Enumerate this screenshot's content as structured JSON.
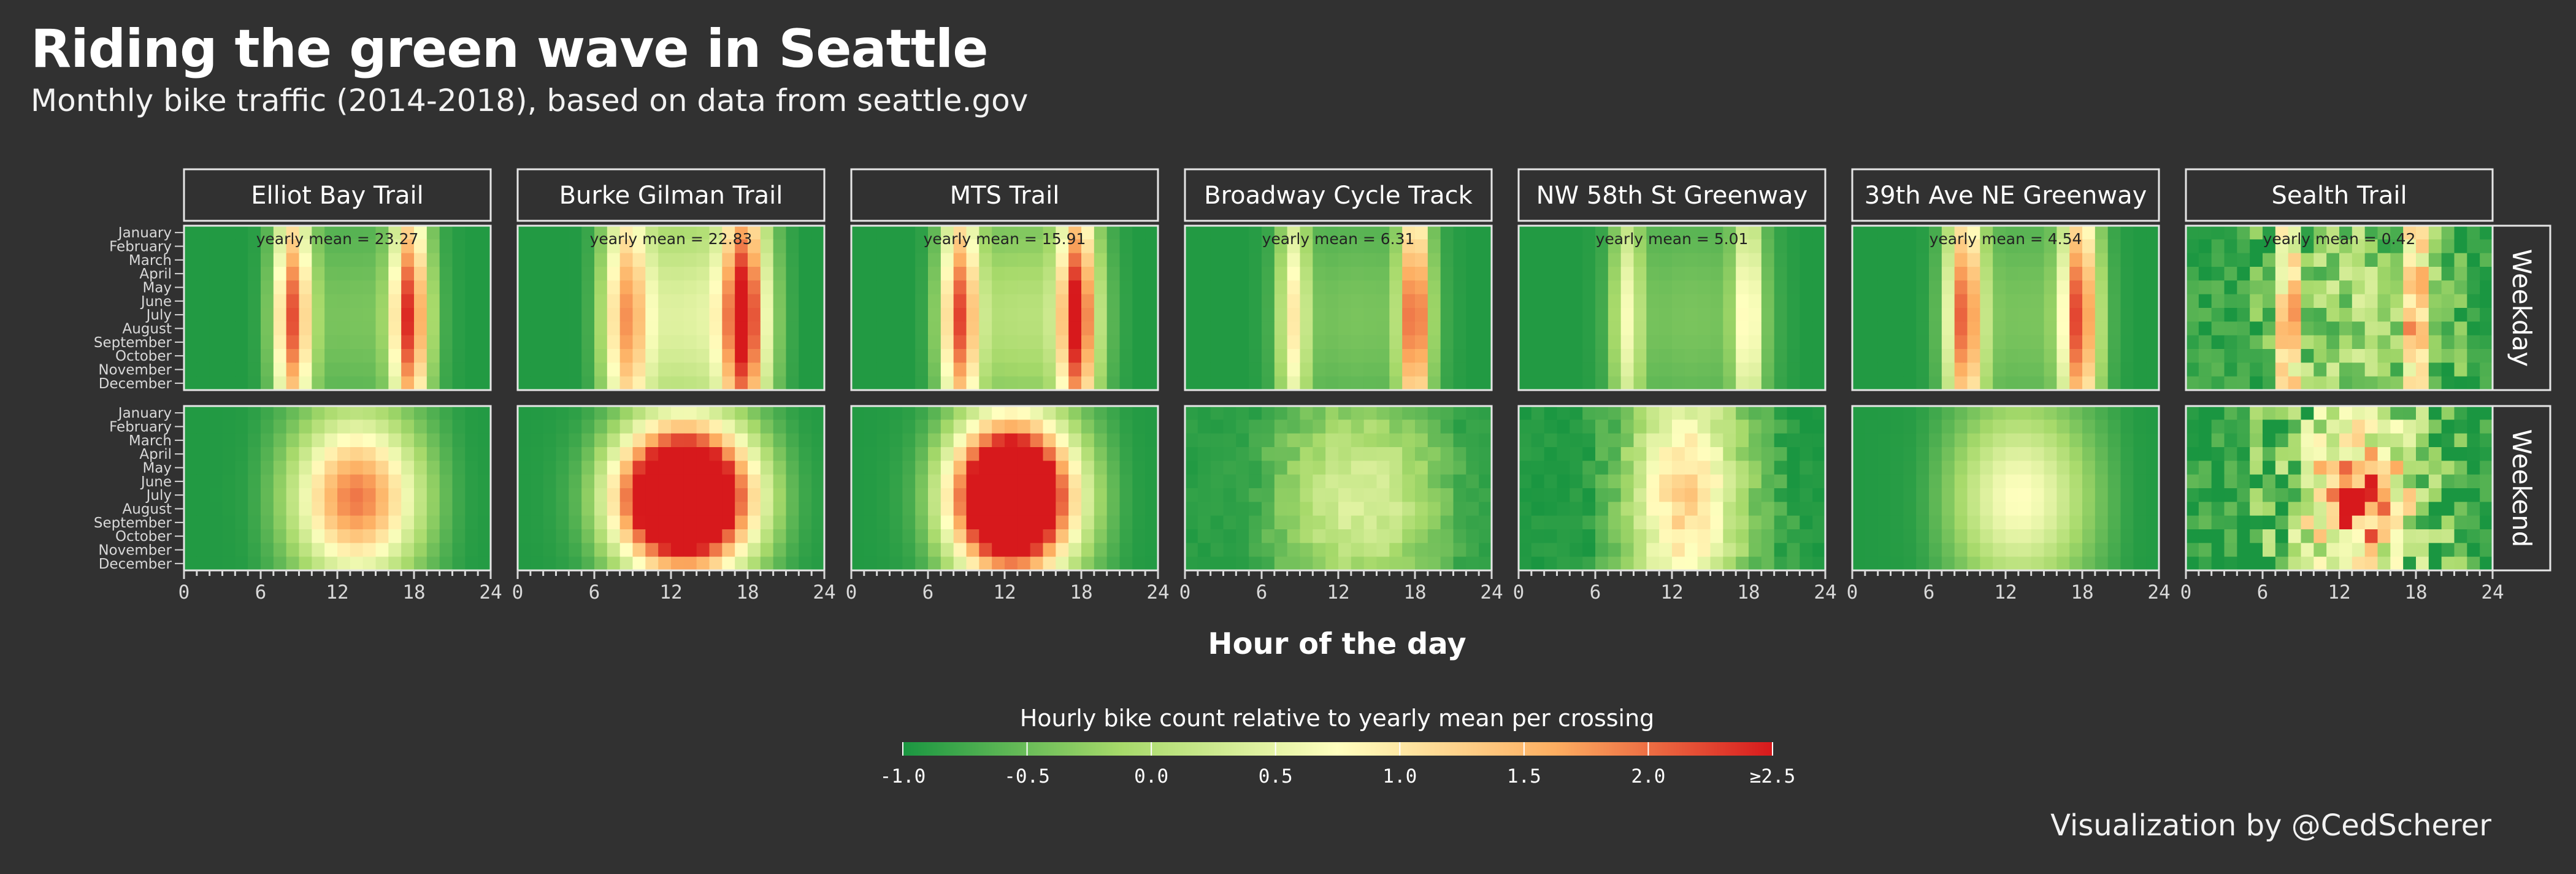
{
  "header": {
    "title": "Riding the green wave in Seattle",
    "subtitle": "Monthly bike traffic (2014-2018), based on data from seattle.gov"
  },
  "footer": {
    "credit": "Visualization by @CedScherer"
  },
  "chart_data": {
    "type": "heatmap",
    "x_label": "Hour of the day",
    "x_ticks": [
      0,
      6,
      12,
      18,
      24
    ],
    "x_range": [
      0,
      24
    ],
    "months": [
      "January",
      "February",
      "March",
      "April",
      "May",
      "June",
      "July",
      "August",
      "September",
      "October",
      "November",
      "December"
    ],
    "rows": [
      "Weekday",
      "Weekend"
    ],
    "color_scale": {
      "title": "Hourly bike count relative to yearly mean per crossing",
      "stops": [
        "#1a9641",
        "#a6d96a",
        "#ffffbf",
        "#fdae61",
        "#d7191c"
      ],
      "ticks": [
        "-1.0",
        "-0.5",
        "0.0",
        "0.5",
        "1.0",
        "1.5",
        "2.0",
        "≥2.5"
      ],
      "range": [
        -1.0,
        2.5
      ]
    },
    "mean_prefix": "yearly mean = ",
    "crossings": [
      {
        "name": "Elliot Bay Trail",
        "yearly_mean": "23.27",
        "wd": {
          "base": -0.95,
          "day": 0.55,
          "p1": 2.8,
          "h1": 8,
          "p2": 3.0,
          "h2": 17.2,
          "sw": 4.5,
          "sp": 1.0
        },
        "we": {
          "base": -0.95,
          "peak": 2.3,
          "c": 13.5,
          "w": 3.3,
          "sw": 4.0,
          "noise": 0.0
        }
      },
      {
        "name": "Burke Gilman Trail",
        "yearly_mean": "22.83",
        "wd": {
          "base": -0.95,
          "day": 1.4,
          "p1": 1.9,
          "h1": 8,
          "p2": 2.8,
          "h2": 17.2,
          "sw": 5.0,
          "sp": 1.2
        },
        "we": {
          "base": -0.95,
          "peak": 5.5,
          "c": 13.0,
          "w": 3.6,
          "sw": 3.6,
          "noise": 0.0
        }
      },
      {
        "name": "MTS Trail",
        "yearly_mean": "15.91",
        "wd": {
          "base": -0.95,
          "day": 1.0,
          "p1": 2.6,
          "h1": 8,
          "p2": 3.0,
          "h2": 17.2,
          "sw": 4.5,
          "sp": 1.0
        },
        "we": {
          "base": -0.95,
          "peak": 5.5,
          "c": 12.5,
          "w": 3.2,
          "sw": 3.8,
          "noise": 0.0
        }
      },
      {
        "name": "Broadway Cycle Track",
        "yearly_mean": "6.31",
        "wd": {
          "base": -0.95,
          "day": 0.55,
          "p1": 1.6,
          "h1": 8,
          "p2": 3.0,
          "h2": 17.5,
          "sw": 4.8,
          "sp": 0.8
        },
        "we": {
          "base": -0.9,
          "peak": 0.7,
          "c": 14.0,
          "w": 4.5,
          "sw": 4.5,
          "noise": 0.15
        }
      },
      {
        "name": "NW 58th St Greenway",
        "yearly_mean": "5.01",
        "wd": {
          "base": -0.95,
          "day": 0.55,
          "p1": 1.3,
          "h1": 8,
          "p2": 1.6,
          "h2": 17.5,
          "sw": 5.0,
          "sp": 0.8
        },
        "we": {
          "base": -0.95,
          "peak": 1.6,
          "c": 13.0,
          "w": 2.8,
          "sw": 6.0,
          "noise": 0.2
        }
      },
      {
        "name": "39th Ave NE Greenway",
        "yearly_mean": "4.54",
        "wd": {
          "base": -0.95,
          "day": 0.55,
          "p1": 2.8,
          "h1": 8.3,
          "p2": 2.9,
          "h2": 17.3,
          "sw": 4.8,
          "sp": 1.0
        },
        "we": {
          "base": -0.95,
          "peak": 1.1,
          "c": 13.0,
          "w": 3.6,
          "sw": 4.5,
          "noise": 0.0
        }
      },
      {
        "name": "Sealth Trail",
        "yearly_mean": "0.42",
        "wd": {
          "base": -0.8,
          "day": 0.7,
          "p1": 2.3,
          "h1": 7.5,
          "p2": 2.4,
          "h2": 17.5,
          "sw": 5.0,
          "sp": 0.6,
          "noise": 0.6
        },
        "we": {
          "base": -0.9,
          "peak": 2.4,
          "c": 13.5,
          "w": 3.0,
          "sw": 4.0,
          "noise": 0.9
        }
      }
    ]
  }
}
